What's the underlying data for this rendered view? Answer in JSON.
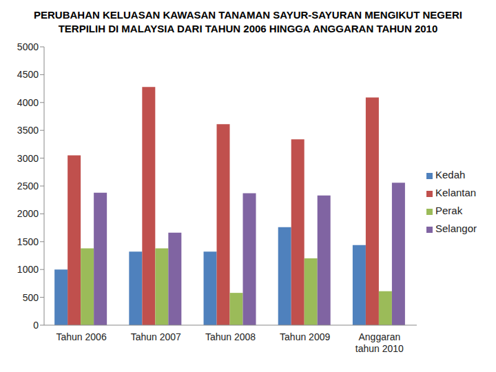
{
  "chart_data": {
    "type": "bar",
    "title": "PERUBAHAN KELUASAN KAWASAN TANAMAN SAYUR-SAYURAN MENGIKUT NEGERI TERPILIH DI MALAYSIA DARI TAHUN 2006 HINGGA ANGGARAN TAHUN 2010",
    "categories": [
      "Tahun 2006",
      "Tahun 2007",
      "Tahun 2008",
      "Tahun 2009",
      "Anggaran tahun 2010"
    ],
    "series": [
      {
        "name": "Kedah",
        "color": "#4f81bd",
        "values": [
          1000,
          1320,
          1320,
          1760,
          1440
        ]
      },
      {
        "name": "Kelantan",
        "color": "#c0504d",
        "values": [
          3050,
          4280,
          3610,
          3340,
          4090
        ]
      },
      {
        "name": "Perak",
        "color": "#9bbb59",
        "values": [
          1380,
          1380,
          580,
          1200,
          610
        ]
      },
      {
        "name": "Selangor",
        "color": "#8064a2",
        "values": [
          2380,
          1660,
          2370,
          2330,
          2560
        ]
      }
    ],
    "ylim": [
      0,
      5000
    ],
    "yticks": [
      0,
      500,
      1000,
      1500,
      2000,
      2500,
      3000,
      3500,
      4000,
      4500,
      5000
    ],
    "grid": false,
    "legend": "right"
  }
}
